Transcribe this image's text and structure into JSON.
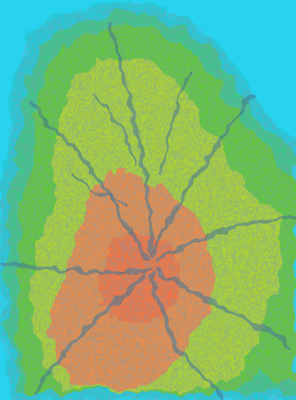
{
  "map": {
    "kind": "topographic-relief",
    "background_color": "#27d3ee",
    "palette": {
      "water": "#27d3ee",
      "low": "#27c9d8",
      "mid_low": "#3fc58a",
      "mid": "#62c641",
      "mid_high": "#a9cf3a",
      "high": "#e38d4f",
      "peak": "#ef7644",
      "contour_line": "#3a5a6a"
    },
    "legend_visible": false,
    "text_labels_visible": false
  }
}
